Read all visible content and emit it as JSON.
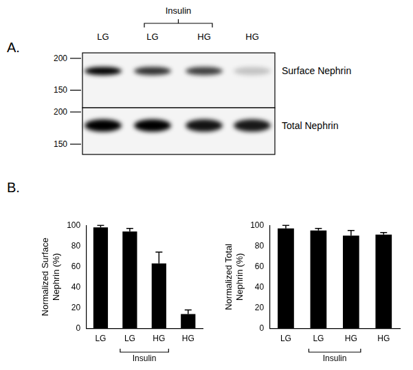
{
  "panels": [
    "A.",
    "B."
  ],
  "blot": {
    "lanes": [
      "LG",
      "LG",
      "HG",
      "HG"
    ],
    "group_labels": [
      {
        "label": "Insulin",
        "from": 1,
        "to": 2
      }
    ],
    "membranes": [
      {
        "label": "Surface Nephrin",
        "markers": [
          200,
          150
        ],
        "band_intensity": [
          100,
          80,
          75,
          20
        ]
      },
      {
        "label": "Total Nephrin",
        "markers": [
          200,
          150
        ],
        "band_intensity": [
          100,
          100,
          92,
          90
        ]
      }
    ]
  },
  "chart_data": [
    {
      "type": "bar",
      "y_label": [
        "Normalized Surface",
        "Nephrin (%)"
      ],
      "categories": [
        "LG",
        "LG",
        "HG",
        "HG"
      ],
      "values": [
        98,
        94,
        63,
        14
      ],
      "errors": [
        2,
        3,
        11,
        4
      ],
      "group_labels": [
        {
          "label": "Insulin",
          "from": 1,
          "to": 2
        }
      ],
      "color": "#000000",
      "ylim": [
        0,
        100
      ],
      "yticks": [
        0,
        20,
        40,
        60,
        80,
        100
      ],
      "grid": false
    },
    {
      "type": "bar",
      "y_label": [
        "Normalized Total",
        "Nephrin (%)"
      ],
      "categories": [
        "LG",
        "LG",
        "HG",
        "HG"
      ],
      "values": [
        97,
        95,
        90,
        91
      ],
      "errors": [
        3,
        2,
        5,
        2
      ],
      "group_labels": [
        {
          "label": "Insulin",
          "from": 1,
          "to": 2
        }
      ],
      "color": "#000000",
      "ylim": [
        0,
        100
      ],
      "yticks": [
        0,
        20,
        40,
        60,
        80,
        100
      ],
      "grid": false
    }
  ]
}
